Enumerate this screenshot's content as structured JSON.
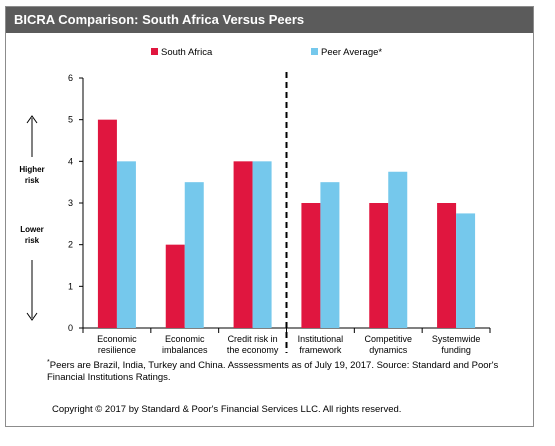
{
  "header": {
    "title": "BICRA Comparison: South Africa Versus Peers"
  },
  "side_labels": {
    "higher": [
      "Higher",
      "risk"
    ],
    "lower": [
      "Lower",
      "risk"
    ]
  },
  "footnote": {
    "marker": "*",
    "text": "Peers are Brazil, India, Turkey and China. Asssessments as of  July 19, 2017. Source: Standard and Poor's Financial Institutions Ratings."
  },
  "copyright": "Copyright © 2017 by Standard & Poor's Financial Services LLC. All rights reserved.",
  "colors": {
    "south_africa": "#e0163f",
    "peer_average": "#75c8ec"
  },
  "chart_data": {
    "type": "bar",
    "categories": [
      [
        "Economic",
        "resilience"
      ],
      [
        "Economic",
        "imbalances"
      ],
      [
        "Credit risk in",
        "the economy"
      ],
      [
        "Institutional",
        "framework"
      ],
      [
        "Competitive",
        "dynamics"
      ],
      [
        "Systemwide",
        "funding"
      ]
    ],
    "series": [
      {
        "name": "South Africa",
        "values": [
          5,
          2,
          4,
          3,
          3,
          3
        ]
      },
      {
        "name": "Peer Average*",
        "values": [
          4,
          3.5,
          4,
          3.5,
          3.75,
          2.75
        ]
      }
    ],
    "ylim": [
      0,
      6
    ],
    "yticks": [
      "0",
      "1",
      "2",
      "3",
      "4",
      "5",
      "6"
    ],
    "legend_position": "top",
    "divider_after_category": 3
  }
}
